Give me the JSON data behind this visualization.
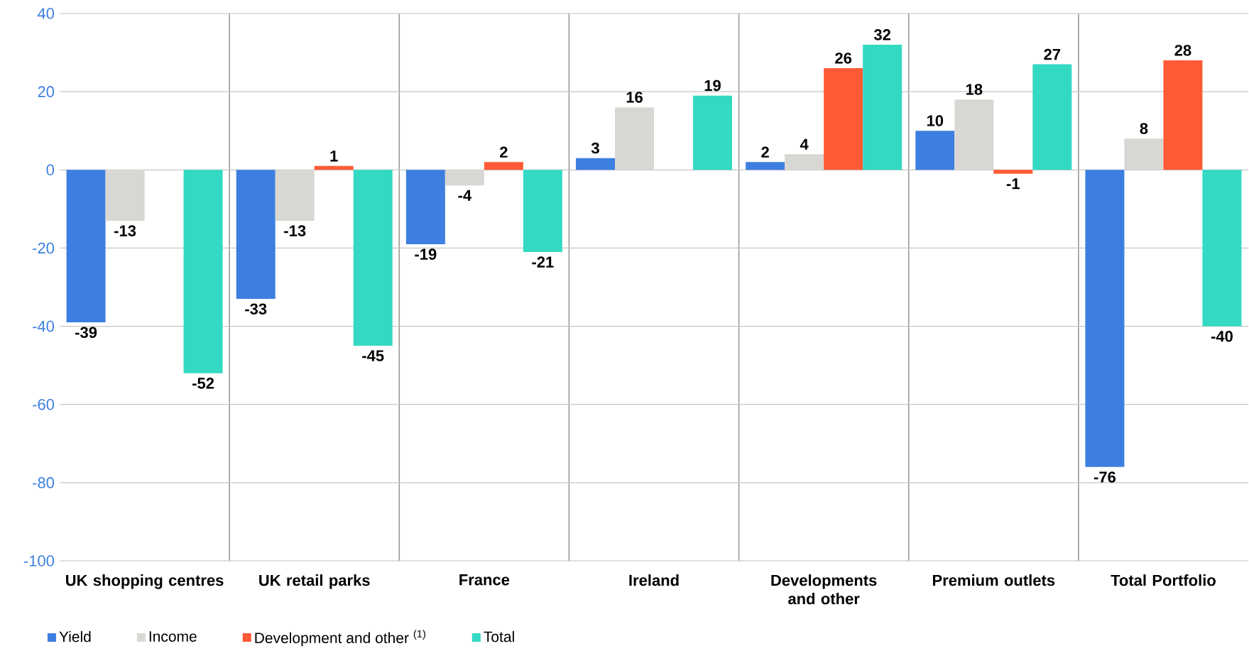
{
  "chart_data": {
    "type": "bar",
    "categories": [
      "UK shopping centres",
      "UK retail parks",
      "France",
      "Ireland",
      "Developments and other",
      "Premium outlets",
      "Total Portfolio"
    ],
    "series": [
      {
        "name": "Yield",
        "color": "#3d7fe0",
        "values": [
          -39,
          -33,
          -19,
          3,
          2,
          10,
          -76
        ]
      },
      {
        "name": "Income",
        "color": "#d9d7d3",
        "values": [
          -13,
          -13,
          -4,
          16,
          4,
          18,
          8
        ]
      },
      {
        "name": "Development and other $^{(1)}$",
        "color": "#ff5a36",
        "values": [
          null,
          1,
          2,
          null,
          26,
          -1,
          28
        ]
      },
      {
        "name": "Total",
        "color": "#33d9c3",
        "values": [
          -52,
          -45,
          -21,
          19,
          32,
          27,
          -40
        ]
      }
    ],
    "ylim": [
      -100,
      40
    ],
    "yticks": [
      -100,
      -80,
      -60,
      -40,
      -20,
      0,
      20,
      40
    ],
    "grid": "y",
    "legend": "bottom left",
    "data_labels": true
  }
}
